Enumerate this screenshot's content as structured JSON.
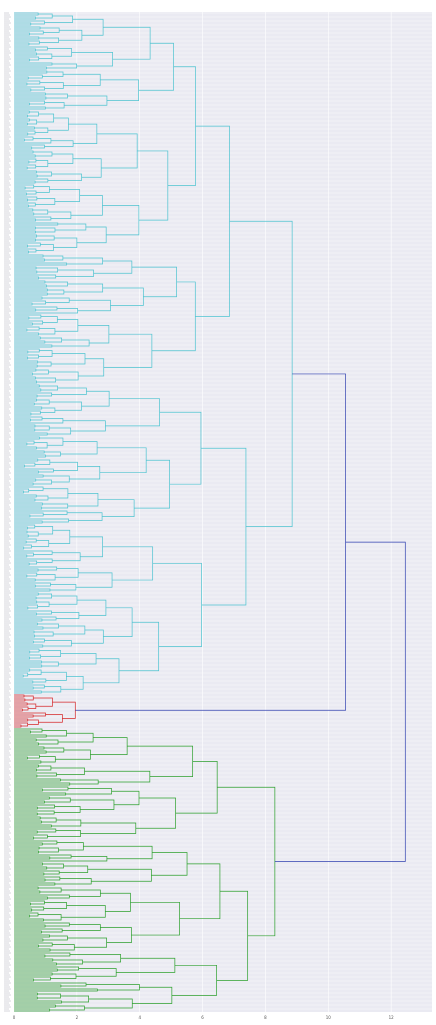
{
  "chart_data": {
    "type": "dendrogram",
    "orientation": "left",
    "title": "",
    "xlabel": "",
    "ylabel": "",
    "xlim": [
      0,
      13.3
    ],
    "x_ticks": [
      0,
      2,
      4,
      6,
      8,
      10,
      12
    ],
    "x_tick_labels": [
      "0",
      "2",
      "4",
      "6",
      "8",
      "10",
      "12"
    ],
    "grid": true,
    "background": "#eaeaf2",
    "leaf_count": 500,
    "clusters": [
      {
        "color": "#4cc3d0",
        "leaf_range": [
          0,
          341
        ]
      },
      {
        "color": "#d62728",
        "leaf_range": [
          341,
          358
        ]
      },
      {
        "color": "#2ca02c",
        "leaf_range": [
          358,
          500
        ]
      }
    ],
    "link_color": "#3040b0",
    "top_merges": [
      {
        "cluster": "cyan",
        "height": 8.85
      },
      {
        "cluster": "red",
        "height": 1.95
      },
      {
        "cluster": "green",
        "height": 8.3
      },
      {
        "merge": "cyan+red",
        "height": 10.55
      },
      {
        "merge": "all",
        "height": 12.45
      }
    ],
    "cyan_subtree_heights": [
      8.85,
      7.9,
      6.55,
      6.05,
      5.9,
      4.5,
      4.3,
      2.9,
      2.65,
      3.45,
      4.6,
      3.4
    ],
    "green_subtree_heights": [
      8.3,
      5.8,
      4.45,
      3.8,
      2.7,
      3.6,
      2.8,
      3.2
    ]
  }
}
